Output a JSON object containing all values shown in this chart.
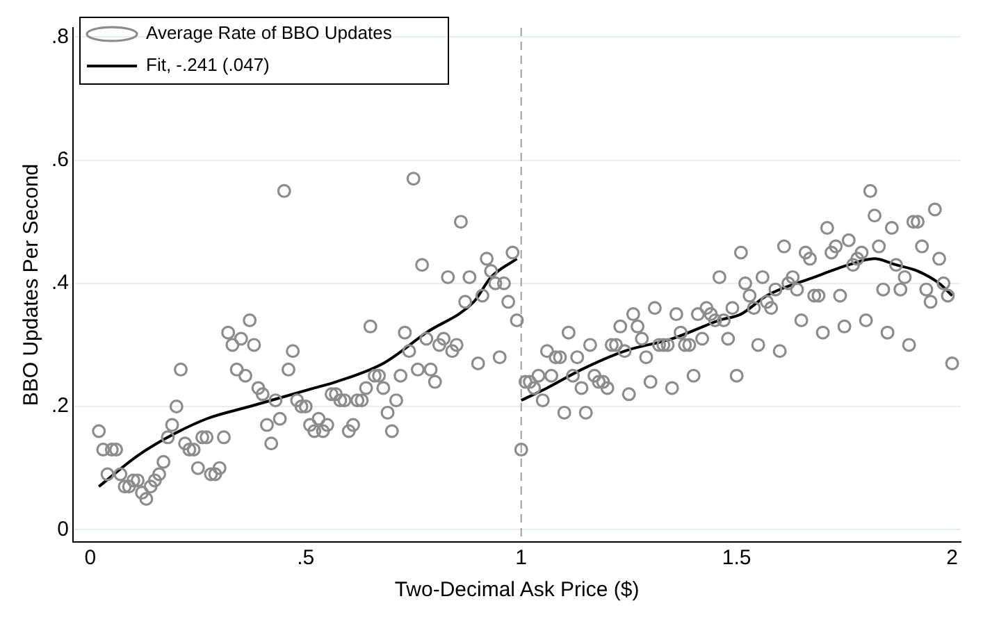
{
  "chart_data": {
    "type": "scatter",
    "xlabel": "Two-Decimal Ask Price ($)",
    "ylabel": "BBO Updates Per Second",
    "xlim": [
      -0.04,
      2.02
    ],
    "ylim": [
      -0.02,
      0.815
    ],
    "xticks": [
      0,
      {
        "value": 0.5,
        "label": ".5"
      },
      1,
      1.5,
      2
    ],
    "yticks": [
      0,
      {
        "value": 0.2,
        "label": ".2"
      },
      {
        "value": 0.4,
        "label": ".4"
      },
      {
        "value": 0.6,
        "label": ".6"
      },
      {
        "value": 0.8,
        "label": ".8"
      }
    ],
    "grid": "y",
    "legend": "top left",
    "ref_lines": [
      {
        "axis": "x",
        "value": 1,
        "color": "#a0a0a0",
        "line_style": "dashed"
      }
    ],
    "series": [
      {
        "name": "Average Rate of BBO Updates",
        "type": "scatter",
        "marker": "circle",
        "color": "#8c8c8c",
        "x": [
          0.02,
          0.03,
          0.05,
          0.06,
          0.04,
          0.07,
          0.08,
          0.09,
          0.1,
          0.11,
          0.12,
          0.13,
          0.14,
          0.15,
          0.16,
          0.17,
          0.18,
          0.19,
          0.2,
          0.21,
          0.22,
          0.23,
          0.24,
          0.25,
          0.26,
          0.27,
          0.28,
          0.29,
          0.3,
          0.31,
          0.32,
          0.33,
          0.35,
          0.34,
          0.36,
          0.37,
          0.38,
          0.39,
          0.4,
          0.41,
          0.42,
          0.43,
          0.44,
          0.45,
          0.46,
          0.47,
          0.48,
          0.49,
          0.5,
          0.51,
          0.52,
          0.53,
          0.54,
          0.55,
          0.56,
          0.57,
          0.58,
          0.59,
          0.6,
          0.61,
          0.62,
          0.63,
          0.64,
          0.65,
          0.66,
          0.67,
          0.68,
          0.69,
          0.7,
          0.71,
          0.72,
          0.73,
          0.74,
          0.75,
          0.76,
          0.77,
          0.78,
          0.79,
          0.8,
          0.81,
          0.82,
          0.83,
          0.84,
          0.85,
          0.86,
          0.87,
          0.88,
          0.9,
          0.91,
          0.92,
          0.93,
          0.94,
          0.95,
          0.96,
          0.97,
          0.98,
          0.99,
          1.0,
          1.01,
          1.02,
          1.03,
          1.04,
          1.05,
          1.06,
          1.07,
          1.08,
          1.09,
          1.1,
          1.11,
          1.12,
          1.13,
          1.14,
          1.15,
          1.16,
          1.17,
          1.18,
          1.19,
          1.2,
          1.21,
          1.22,
          1.23,
          1.24,
          1.25,
          1.26,
          1.27,
          1.28,
          1.29,
          1.3,
          1.31,
          1.32,
          1.33,
          1.34,
          1.35,
          1.36,
          1.37,
          1.38,
          1.39,
          1.4,
          1.41,
          1.42,
          1.43,
          1.44,
          1.45,
          1.46,
          1.47,
          1.48,
          1.49,
          1.5,
          1.51,
          1.52,
          1.53,
          1.54,
          1.55,
          1.56,
          1.57,
          1.58,
          1.59,
          1.6,
          1.61,
          1.62,
          1.63,
          1.64,
          1.65,
          1.66,
          1.67,
          1.68,
          1.69,
          1.7,
          1.71,
          1.72,
          1.73,
          1.74,
          1.75,
          1.76,
          1.77,
          1.78,
          1.79,
          1.8,
          1.81,
          1.82,
          1.83,
          1.84,
          1.85,
          1.86,
          1.87,
          1.88,
          1.89,
          1.9,
          1.91,
          1.92,
          1.93,
          1.94,
          1.95,
          1.96,
          1.97,
          1.98,
          1.99,
          2.0
        ],
        "values": [
          0.16,
          0.13,
          0.13,
          0.13,
          0.09,
          0.09,
          0.07,
          0.07,
          0.08,
          0.08,
          0.06,
          0.05,
          0.07,
          0.08,
          0.09,
          0.11,
          0.15,
          0.17,
          0.2,
          0.26,
          0.14,
          0.13,
          0.13,
          0.1,
          0.15,
          0.15,
          0.09,
          0.09,
          0.1,
          0.15,
          0.32,
          0.3,
          0.31,
          0.26,
          0.25,
          0.34,
          0.3,
          0.23,
          0.22,
          0.17,
          0.14,
          0.21,
          0.18,
          0.55,
          0.26,
          0.29,
          0.21,
          0.2,
          0.2,
          0.17,
          0.16,
          0.18,
          0.16,
          0.17,
          0.22,
          0.22,
          0.21,
          0.21,
          0.16,
          0.17,
          0.21,
          0.21,
          0.23,
          0.33,
          0.25,
          0.25,
          0.23,
          0.19,
          0.16,
          0.21,
          0.25,
          0.32,
          0.29,
          0.57,
          0.26,
          0.43,
          0.31,
          0.26,
          0.24,
          0.3,
          0.31,
          0.41,
          0.29,
          0.3,
          0.5,
          0.37,
          0.41,
          0.27,
          0.38,
          0.44,
          0.42,
          0.4,
          0.28,
          0.4,
          0.37,
          0.45,
          0.34,
          0.13,
          0.24,
          0.24,
          0.23,
          0.25,
          0.21,
          0.29,
          0.25,
          0.28,
          0.28,
          0.19,
          0.32,
          0.25,
          0.28,
          0.23,
          0.19,
          0.3,
          0.25,
          0.24,
          0.24,
          0.23,
          0.3,
          0.3,
          0.33,
          0.29,
          0.22,
          0.35,
          0.33,
          0.31,
          0.28,
          0.24,
          0.36,
          0.3,
          0.3,
          0.3,
          0.23,
          0.35,
          0.32,
          0.3,
          0.3,
          0.25,
          0.35,
          0.31,
          0.36,
          0.35,
          0.34,
          0.41,
          0.34,
          0.31,
          0.36,
          0.25,
          0.45,
          0.4,
          0.38,
          0.36,
          0.3,
          0.41,
          0.37,
          0.36,
          0.39,
          0.29,
          0.46,
          0.4,
          0.41,
          0.39,
          0.34,
          0.45,
          0.44,
          0.38,
          0.38,
          0.32,
          0.49,
          0.45,
          0.46,
          0.38,
          0.33,
          0.47,
          0.43,
          0.44,
          0.45,
          0.34,
          0.55,
          0.51,
          0.46,
          0.39,
          0.32,
          0.49,
          0.43,
          0.39,
          0.41,
          0.3,
          0.5,
          0.5,
          0.46,
          0.39,
          0.37,
          0.52,
          0.44,
          0.4,
          0.38,
          0.27
        ]
      },
      {
        "name": "Fit, -.241 (.047)",
        "type": "line",
        "marker": "none",
        "color": "#000000",
        "x": [
          0.02,
          0.11,
          0.18,
          0.27,
          0.37,
          0.52,
          0.57,
          0.68,
          0.78,
          0.89,
          0.93,
          0.99
        ],
        "values": [
          0.07,
          0.12,
          0.15,
          0.18,
          0.2,
          0.23,
          0.24,
          0.27,
          0.32,
          0.37,
          0.41,
          0.44
        ]
      },
      {
        "type": "line",
        "marker": "none",
        "color": "#000000",
        "x": [
          1.0,
          1.06,
          1.14,
          1.24,
          1.35,
          1.46,
          1.51,
          1.57,
          1.68,
          1.76,
          1.82,
          1.87,
          1.92,
          1.97,
          2.0
        ],
        "values": [
          0.21,
          0.23,
          0.26,
          0.29,
          0.31,
          0.34,
          0.35,
          0.38,
          0.41,
          0.43,
          0.44,
          0.43,
          0.42,
          0.4,
          0.38
        ]
      }
    ]
  }
}
